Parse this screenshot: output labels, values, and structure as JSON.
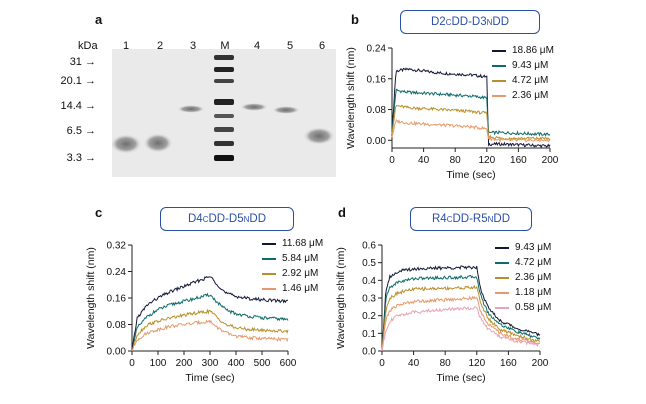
{
  "panels": {
    "a": {
      "letter": "a",
      "kda_label": "kDa",
      "lanes": [
        "1",
        "2",
        "3",
        "M",
        "4",
        "5",
        "6"
      ],
      "markers": [
        "31",
        "20.1",
        "14.4",
        "6.5",
        "3.3"
      ]
    },
    "b": {
      "letter": "b",
      "construct": "D2 CDD-D3 NDD",
      "construct_parts": {
        "pre": "D2 ",
        "sup1": "C",
        "mid": "DD-D3 ",
        "sup2": "N",
        "post": "DD"
      }
    },
    "c": {
      "letter": "c",
      "construct": "D4 CDD-D5 NDD",
      "construct_parts": {
        "pre": "D4 ",
        "sup1": "C",
        "mid": "DD-D5 ",
        "sup2": "N",
        "post": "DD"
      }
    },
    "d": {
      "letter": "d",
      "construct": "R4 CDD-R5 NDD",
      "construct_parts": {
        "pre": "R4 ",
        "sup1": "C",
        "mid": "DD-R5 ",
        "sup2": "N",
        "post": "DD"
      }
    }
  },
  "chart_data": [
    {
      "id": "b",
      "type": "line",
      "xlabel": "Time (sec)",
      "ylabel": "Wavelength shift (nm)",
      "xlim": [
        0,
        200
      ],
      "ylim": [
        -0.02,
        0.24
      ],
      "xticks": [
        0,
        40,
        80,
        120,
        160,
        200
      ],
      "yticks": [
        0.0,
        0.08,
        0.16,
        0.24
      ],
      "ytick_labels": [
        "0.00",
        "0.08",
        "0.16",
        "0.24"
      ],
      "series": [
        {
          "name": "18.86 μM",
          "color": "#141838",
          "x": [
            0,
            5,
            20,
            60,
            100,
            120,
            122,
            140,
            200
          ],
          "values": [
            0.02,
            0.18,
            0.185,
            0.175,
            0.17,
            0.165,
            -0.01,
            -0.01,
            -0.015
          ]
        },
        {
          "name": "9.43 μM",
          "color": "#0f6b6b",
          "x": [
            0,
            5,
            20,
            60,
            100,
            120,
            122,
            140,
            200
          ],
          "values": [
            0.02,
            0.13,
            0.125,
            0.12,
            0.115,
            0.11,
            0.02,
            0.02,
            0.015
          ]
        },
        {
          "name": "4.72 μM",
          "color": "#b8902a",
          "x": [
            0,
            5,
            20,
            60,
            100,
            120,
            122,
            140,
            200
          ],
          "values": [
            0.02,
            0.09,
            0.085,
            0.08,
            0.075,
            0.07,
            0.01,
            0.005,
            0.005
          ]
        },
        {
          "name": "2.36 μM",
          "color": "#e59a6b",
          "x": [
            0,
            5,
            20,
            60,
            100,
            120,
            122,
            140,
            200
          ],
          "values": [
            0.01,
            0.05,
            0.045,
            0.04,
            0.035,
            0.03,
            0.005,
            0.0,
            0.0
          ]
        }
      ]
    },
    {
      "id": "c",
      "type": "line",
      "xlabel": "Time (sec)",
      "ylabel": "Wavelength shift (nm)",
      "xlim": [
        0,
        600
      ],
      "ylim": [
        0,
        0.32
      ],
      "xticks": [
        0,
        100,
        200,
        300,
        400,
        500,
        600
      ],
      "yticks": [
        0.0,
        0.08,
        0.16,
        0.24,
        0.32
      ],
      "ytick_labels": [
        "0.00",
        "0.08",
        "0.16",
        "0.24",
        "0.32"
      ],
      "series": [
        {
          "name": "11.68 μM",
          "color": "#141838",
          "x": [
            0,
            20,
            60,
            100,
            150,
            200,
            250,
            300,
            330,
            360,
            400,
            450,
            500,
            550,
            600
          ],
          "values": [
            0.0,
            0.1,
            0.14,
            0.16,
            0.18,
            0.195,
            0.21,
            0.225,
            0.2,
            0.175,
            0.165,
            0.158,
            0.155,
            0.152,
            0.15
          ]
        },
        {
          "name": "5.84 μM",
          "color": "#0f6b6b",
          "x": [
            0,
            20,
            60,
            100,
            150,
            200,
            250,
            300,
            330,
            360,
            400,
            450,
            500,
            550,
            600
          ],
          "values": [
            0.0,
            0.07,
            0.105,
            0.125,
            0.14,
            0.15,
            0.16,
            0.17,
            0.145,
            0.125,
            0.112,
            0.105,
            0.1,
            0.098,
            0.095
          ]
        },
        {
          "name": "2.92 μM",
          "color": "#b8902a",
          "x": [
            0,
            20,
            60,
            100,
            150,
            200,
            250,
            300,
            330,
            360,
            400,
            450,
            500,
            550,
            600
          ],
          "values": [
            0.0,
            0.05,
            0.08,
            0.09,
            0.1,
            0.108,
            0.115,
            0.12,
            0.1,
            0.08,
            0.07,
            0.065,
            0.063,
            0.061,
            0.06
          ]
        },
        {
          "name": "1.46 μM",
          "color": "#e59a6b",
          "x": [
            0,
            20,
            60,
            100,
            150,
            200,
            250,
            300,
            330,
            360,
            400,
            450,
            500,
            550,
            600
          ],
          "values": [
            0.0,
            0.035,
            0.055,
            0.065,
            0.075,
            0.08,
            0.085,
            0.09,
            0.07,
            0.055,
            0.045,
            0.04,
            0.038,
            0.036,
            0.035
          ]
        }
      ]
    },
    {
      "id": "d",
      "type": "line",
      "xlabel": "Time (sec)",
      "ylabel": "Wavelength shift (nm)",
      "xlim": [
        0,
        200
      ],
      "ylim": [
        0,
        0.6
      ],
      "xticks": [
        0,
        40,
        80,
        120,
        160,
        200
      ],
      "yticks": [
        0.0,
        0.1,
        0.2,
        0.3,
        0.4,
        0.5,
        0.6
      ],
      "ytick_labels": [
        "0.0",
        "0.1",
        "0.2",
        "0.3",
        "0.4",
        "0.5",
        "0.6"
      ],
      "series": [
        {
          "name": "9.43 μM",
          "color": "#141838",
          "x": [
            0,
            5,
            10,
            20,
            40,
            80,
            120,
            125,
            135,
            150,
            170,
            200
          ],
          "values": [
            0.0,
            0.35,
            0.42,
            0.45,
            0.465,
            0.47,
            0.475,
            0.35,
            0.24,
            0.17,
            0.13,
            0.09
          ]
        },
        {
          "name": "4.72 μM",
          "color": "#0f6b6b",
          "x": [
            0,
            5,
            10,
            20,
            40,
            80,
            120,
            125,
            135,
            150,
            170,
            200
          ],
          "values": [
            0.0,
            0.3,
            0.36,
            0.39,
            0.41,
            0.415,
            0.42,
            0.31,
            0.21,
            0.15,
            0.11,
            0.07
          ]
        },
        {
          "name": "2.36 μM",
          "color": "#b8902a",
          "x": [
            0,
            5,
            10,
            20,
            40,
            80,
            120,
            125,
            135,
            150,
            170,
            200
          ],
          "values": [
            0.0,
            0.24,
            0.3,
            0.33,
            0.35,
            0.355,
            0.36,
            0.27,
            0.18,
            0.12,
            0.09,
            0.05
          ]
        },
        {
          "name": "1.18 μM",
          "color": "#e59a6b",
          "x": [
            0,
            5,
            10,
            20,
            40,
            80,
            120,
            125,
            135,
            150,
            170,
            200
          ],
          "values": [
            0.0,
            0.18,
            0.23,
            0.26,
            0.28,
            0.29,
            0.3,
            0.22,
            0.15,
            0.1,
            0.07,
            0.04
          ]
        },
        {
          "name": "0.58 μM",
          "color": "#e8a3b5",
          "x": [
            0,
            5,
            10,
            20,
            40,
            80,
            120,
            125,
            135,
            150,
            170,
            200
          ],
          "values": [
            0.0,
            0.12,
            0.17,
            0.2,
            0.22,
            0.235,
            0.245,
            0.18,
            0.12,
            0.08,
            0.055,
            0.035
          ]
        }
      ]
    }
  ]
}
